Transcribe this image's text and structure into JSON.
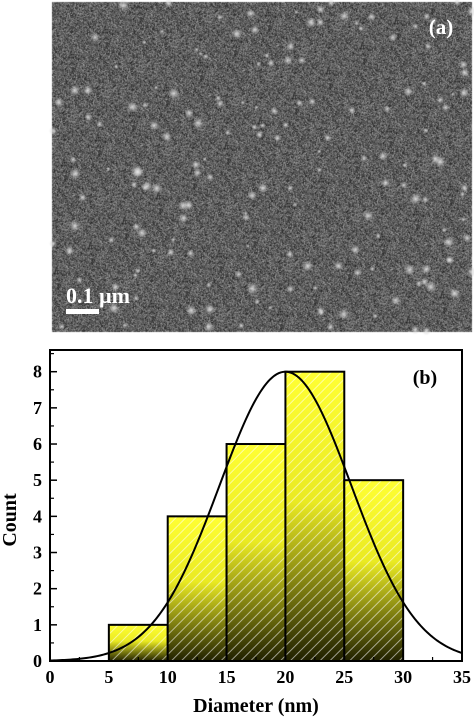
{
  "panel_a": {
    "label": "(a)",
    "scale_bar_text": "0.1 µm"
  },
  "chart_data": {
    "type": "bar",
    "panel_label": "(b)",
    "xlabel": "Diameter (nm)",
    "ylabel": "Count",
    "xlim": [
      0,
      35
    ],
    "ylim": [
      0,
      8.6
    ],
    "xticks": [
      0,
      5,
      10,
      15,
      20,
      25,
      30,
      35
    ],
    "yticks": [
      0,
      1,
      2,
      3,
      4,
      5,
      6,
      7,
      8
    ],
    "bins": [
      {
        "start": 5,
        "end": 10,
        "value": 1
      },
      {
        "start": 10,
        "end": 15,
        "value": 4
      },
      {
        "start": 15,
        "end": 20,
        "value": 6
      },
      {
        "start": 20,
        "end": 25,
        "value": 8
      },
      {
        "start": 25,
        "end": 30,
        "value": 5
      }
    ],
    "fit_curve": {
      "type": "gaussian",
      "peak": 8,
      "center": 20,
      "sigma": 5.6
    },
    "grid": false,
    "colors": {
      "bar_top": "#ffff33",
      "bar_bottom": "#1a1a00",
      "hatch": "#ffffff",
      "curve": "#000000"
    }
  }
}
